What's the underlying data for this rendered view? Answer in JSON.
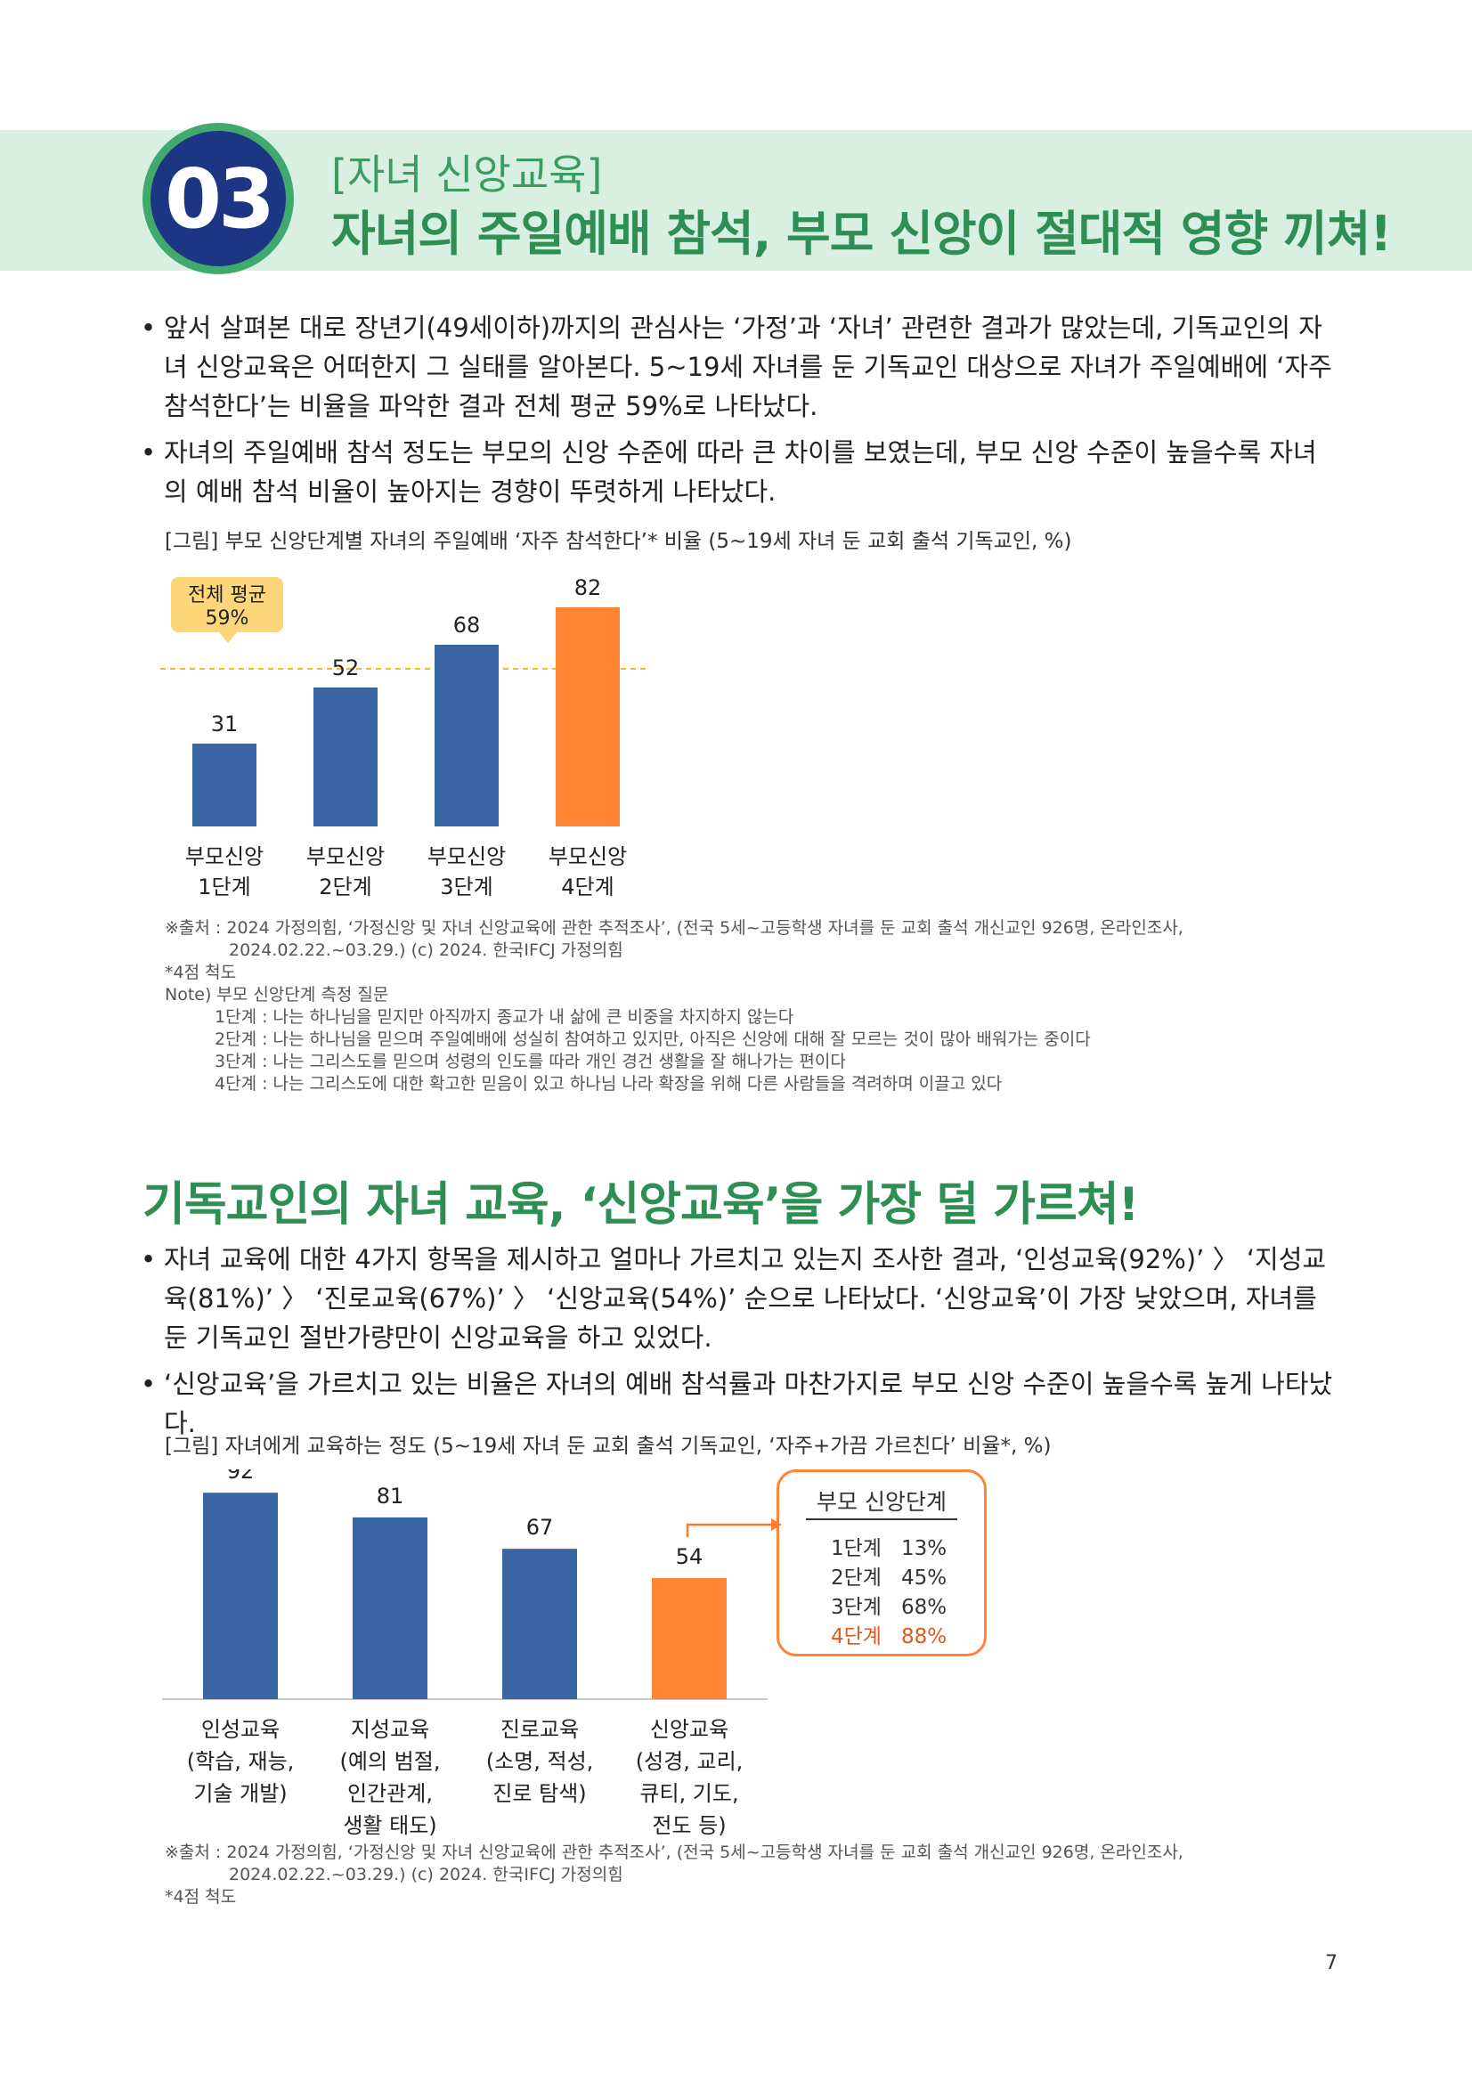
{
  "header": {
    "number": "03",
    "kicker": "[자녀 신앙교육]",
    "title": "자녀의 주일예배 참석, 부모 신앙이 절대적 영향 끼쳐!"
  },
  "section1": {
    "bullets": [
      "앞서 살펴본 대로 장년기(49세이하)까지의 관심사는 ‘가정’과 ‘자녀’ 관련한 결과가 많았는데, 기독교인의 자녀 신앙교육은 어떠한지 그 실태를 알아본다. 5~19세 자녀를 둔 기독교인 대상으로 자녀가 주일예배에 ‘자주 참석한다’는 비율을 파악한 결과 전체 평균 59%로 나타났다.",
      "자녀의 주일예배 참석 정도는 부모의 신앙 수준에 따라 큰 차이를 보였는데, 부모 신앙 수준이 높을수록 자녀의 예배 참석 비율이 높아지는 경향이 뚜렷하게 나타났다."
    ],
    "caption": "[그림] 부모 신앙단계별 자녀의 주일예배 ‘자주 참석한다’* 비율 (5~19세 자녀 둔 교회 출석 기독교인, %)",
    "source_line1": "※출처 : 2024 가정의힘, ‘가정신앙 및 자녀 신앙교육에 관한 추적조사’, (전국 5세~고등학생 자녀를 둔 교회 출석 개신교인 926명, 온라인조사,",
    "source_line2": "2024.02.22.~03.29.) (c) 2024. 한국IFCJ 가정의힘",
    "scale_note": "*4점 척도",
    "note_title": "Note) 부모 신앙단계 측정 질문",
    "note_items": [
      "1단계 : 나는 하나님을 믿지만 아직까지 종교가 내 삶에 큰 비중을 차지하지 않는다",
      "2단계 : 나는 하나님을 믿으며 주일예배에 성실히 참여하고 있지만, 아직은 신앙에 대해 잘 모르는 것이 많아 배워가는 중이다",
      "3단계 : 나는 그리스도를 믿으며 성령의 인도를 따라 개인 경건 생활을 잘 해나가는 편이다",
      "4단계 : 나는 그리스도에 대한 확고한 믿음이 있고 하나님 나라 확장을 위해 다른 사람들을 격려하며 이끌고 있다"
    ]
  },
  "section2": {
    "title": "기독교인의 자녀 교육, ‘신앙교육’을 가장 덜 가르쳐!",
    "bullets": [
      "자녀 교육에 대한 4가지 항목을 제시하고 얼마나 가르치고 있는지 조사한 결과, ‘인성교육(92%)’ 〉 ‘지성교육(81%)’ 〉 ‘진로교육(67%)’ 〉 ‘신앙교육(54%)’ 순으로 나타났다. ‘신앙교육’이 가장 낮았으며, 자녀를 둔 기독교인 절반가량만이 신앙교육을 하고 있었다.",
      "‘신앙교육’을 가르치고 있는 비율은 자녀의 예배 참석률과 마찬가지로 부모 신앙 수준이 높을수록 높게 나타났다."
    ],
    "caption": "[그림] 자녀에게 교육하는 정도 (5~19세 자녀 둔 교회 출석 기독교인, ‘자주+가끔 가르친다’ 비율*, %)",
    "source_line1": "※출처 : 2024 가정의힘, ‘가정신앙 및 자녀 신앙교육에 관한 추적조사’, (전국 5세~고등학생 자녀를 둔 교회 출석 개신교인 926명, 온라인조사,",
    "source_line2": "2024.02.22.~03.29.) (c) 2024. 한국IFCJ 가정의힘",
    "scale_note": "*4점 척도",
    "callout": {
      "title": "부모 신앙단계",
      "rows": [
        {
          "stage": "1단계",
          "value": "13%"
        },
        {
          "stage": "2단계",
          "value": "45%"
        },
        {
          "stage": "3단계",
          "value": "68%"
        },
        {
          "stage": "4단계",
          "value": "88%"
        }
      ]
    }
  },
  "page_number": "7",
  "chart_data": [
    {
      "type": "bar",
      "categories": [
        [
          "부모신앙",
          "1단계"
        ],
        [
          "부모신앙",
          "2단계"
        ],
        [
          "부모신앙",
          "3단계"
        ],
        [
          "부모신앙",
          "4단계"
        ]
      ],
      "values": [
        31,
        52,
        68,
        82
      ],
      "ylim": [
        0,
        100
      ],
      "average": {
        "value": 59,
        "label": [
          "전체 평균",
          "59%"
        ]
      },
      "colors": [
        "#3b65a5",
        "#3b65a5",
        "#3b65a5",
        "#ff8433"
      ],
      "grid": false
    },
    {
      "type": "bar",
      "categories": [
        [
          "인성교육",
          "(학습, 재능,",
          "기술 개발)"
        ],
        [
          "지성교육",
          "(예의 범절,",
          "인간관계,",
          "생활 태도)"
        ],
        [
          "진로교육",
          "(소명, 적성,",
          "진로 탐색)"
        ],
        [
          "신앙교육",
          "(성경, 교리,",
          "큐티, 기도,",
          "전도 등)"
        ]
      ],
      "values": [
        92,
        81,
        67,
        54
      ],
      "ylim": [
        0,
        100
      ],
      "colors": [
        "#3b65a5",
        "#3b65a5",
        "#3b65a5",
        "#ff8433"
      ],
      "grid": false
    }
  ]
}
